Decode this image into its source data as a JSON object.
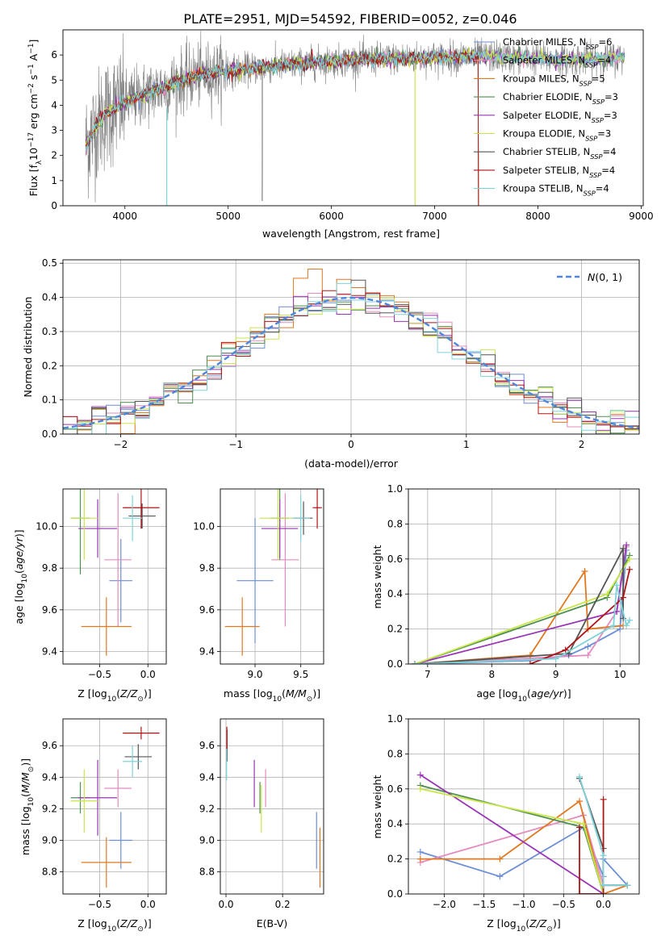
{
  "title": "PLATE=2951, MJD=54592, FIBERID=0052, z=0.046",
  "colors": {
    "Chabrier MILES": "#6c8ed6",
    "Salpeter MILES": "#e58bbf",
    "Kroupa MILES": "#e07820",
    "Chabrier ELODIE": "#4f8f4f",
    "Salpeter ELODIE": "#9a35b5",
    "Kroupa ELODIE": "#c8e64a",
    "Chabrier STELIB": "#555555",
    "Salpeter STELIB": "#b01515",
    "Kroupa STELIB": "#7fd3d8"
  },
  "chart_data": [
    {
      "id": "spectrum",
      "type": "line",
      "title": "PLATE=2951, MJD=54592, FIBERID=0052, z=0.046",
      "xlabel": "wavelength [Angstrom, rest frame]",
      "ylabel": "Flux [f_λ10^-17 erg cm^-2 s^-1 A^-1]",
      "xlim": [
        3400,
        9020
      ],
      "ylim": [
        0,
        7
      ],
      "xticks": [
        4000,
        5000,
        6000,
        7000,
        8000,
        9000
      ],
      "yticks": [
        0,
        1,
        2,
        3,
        4,
        5,
        6
      ],
      "grid": false,
      "legend_position": "top-right",
      "legend": [
        {
          "base": "Chabrier MILES, N",
          "sub": "SSP",
          "tail": "=6"
        },
        {
          "base": "Salpeter MILES, N",
          "sub": "SSP",
          "tail": "=4"
        },
        {
          "base": "Kroupa MILES, N",
          "sub": "SSP",
          "tail": "=5"
        },
        {
          "base": "Chabrier ELODIE, N",
          "sub": "SSP",
          "tail": "=3"
        },
        {
          "base": "Salpeter ELODIE, N",
          "sub": "SSP",
          "tail": "=3"
        },
        {
          "base": "Kroupa ELODIE, N",
          "sub": "SSP",
          "tail": "=3"
        },
        {
          "base": "Chabrier STELIB, N",
          "sub": "SSP",
          "tail": "=4"
        },
        {
          "base": "Salpeter STELIB, N",
          "sub": "SSP",
          "tail": "=4"
        },
        {
          "base": "Kroupa STELIB, N",
          "sub": "SSP",
          "tail": "=4"
        }
      ],
      "data_series": "gray",
      "continuum_points": [
        [
          3620,
          2.4
        ],
        [
          3700,
          3.0
        ],
        [
          3800,
          3.6
        ],
        [
          3900,
          3.9
        ],
        [
          4000,
          4.1
        ],
        [
          4100,
          4.3
        ],
        [
          4300,
          4.6
        ],
        [
          4500,
          4.9
        ],
        [
          4700,
          5.2
        ],
        [
          5000,
          5.35
        ],
        [
          5300,
          5.5
        ],
        [
          5600,
          5.6
        ],
        [
          6000,
          5.75
        ],
        [
          6500,
          5.85
        ],
        [
          7000,
          5.9
        ],
        [
          7400,
          5.95
        ],
        [
          7800,
          5.9
        ],
        [
          8200,
          5.8
        ],
        [
          8600,
          5.85
        ],
        [
          8850,
          5.9
        ]
      ]
    },
    {
      "id": "residuals",
      "type": "histogram",
      "xlabel": "(data-model)/error",
      "ylabel": "Normed distribution",
      "xlim": [
        -2.5,
        2.5
      ],
      "ylim": [
        0,
        0.51
      ],
      "xticks": [
        -2,
        -1,
        0,
        1,
        2
      ],
      "yticks": [
        0.0,
        0.1,
        0.2,
        0.3,
        0.4,
        0.5
      ],
      "grid": true,
      "legend_position": "top-right",
      "normal_curve_label": "N(0,1)",
      "bin_width": 0.125
    },
    {
      "id": "z-vs-age",
      "type": "errorbar",
      "xlabel": "Z [log10(Z/Z⊙)]",
      "ylabel": "age [log10(age/yr)]",
      "xlim": [
        -0.88,
        0.19
      ],
      "ylim": [
        9.34,
        10.18
      ],
      "xticks": [
        -0.5,
        0.0
      ],
      "yticks": [
        9.4,
        9.6,
        9.8,
        10.0
      ],
      "points": [
        {
          "model": "Chabrier MILES",
          "x": -0.28,
          "xerr": 0.12,
          "y": 9.74,
          "yerr": 0.2
        },
        {
          "model": "Salpeter MILES",
          "x": -0.31,
          "xerr": 0.14,
          "y": 9.84,
          "yerr": 0.32
        },
        {
          "model": "Kroupa MILES",
          "x": -0.43,
          "xerr": 0.26,
          "y": 9.52,
          "yerr": 0.14
        },
        {
          "model": "Chabrier ELODIE",
          "x": -0.7,
          "xerr": 0.1,
          "y": 10.04,
          "yerr": 0.27
        },
        {
          "model": "Salpeter ELODIE",
          "x": -0.52,
          "xerr": 0.2,
          "y": 9.99,
          "yerr": 0.14
        },
        {
          "model": "Kroupa ELODIE",
          "x": -0.66,
          "xerr": 0.14,
          "y": 10.04,
          "yerr": 0.2
        },
        {
          "model": "Chabrier STELIB",
          "x": -0.06,
          "xerr": 0.14,
          "y": 10.05,
          "yerr": 0.06
        },
        {
          "model": "Salpeter STELIB",
          "x": -0.07,
          "xerr": 0.19,
          "y": 10.09,
          "yerr": 0.1
        },
        {
          "model": "Kroupa STELIB",
          "x": -0.16,
          "xerr": 0.1,
          "y": 10.04,
          "yerr": 0.11
        }
      ]
    },
    {
      "id": "mass-vs-age",
      "type": "errorbar",
      "xlabel": "mass [log10(M/M⊙)]",
      "ylabel": "",
      "xlim": [
        8.62,
        9.75
      ],
      "ylim": [
        9.34,
        10.18
      ],
      "xticks": [
        9.0,
        9.5
      ],
      "yticks": [
        9.4,
        9.6,
        9.8,
        10.0
      ],
      "points": [
        {
          "model": "Chabrier MILES",
          "x": 9.0,
          "xerr": 0.2,
          "y": 9.74,
          "yerr": 0.3
        },
        {
          "model": "Salpeter MILES",
          "x": 9.33,
          "xerr": 0.15,
          "y": 9.84,
          "yerr": 0.32
        },
        {
          "model": "Kroupa MILES",
          "x": 8.86,
          "xerr": 0.19,
          "y": 9.52,
          "yerr": 0.14
        },
        {
          "model": "Chabrier ELODIE",
          "x": 9.27,
          "xerr": 0.1,
          "y": 10.04,
          "yerr": 0.2
        },
        {
          "model": "Salpeter ELODIE",
          "x": 9.27,
          "xerr": 0.2,
          "y": 9.99,
          "yerr": 0.14
        },
        {
          "model": "Kroupa ELODIE",
          "x": 9.25,
          "xerr": 0.2,
          "y": 10.04,
          "yerr": 0.2
        },
        {
          "model": "Chabrier STELIB",
          "x": 9.53,
          "xerr": 0.1,
          "y": 10.04,
          "yerr": 0.08
        },
        {
          "model": "Salpeter STELIB",
          "x": 9.68,
          "xerr": 0.05,
          "y": 10.09,
          "yerr": 0.1
        },
        {
          "model": "Kroupa STELIB",
          "x": 9.5,
          "xerr": 0.1,
          "y": 10.04,
          "yerr": 0.11
        }
      ]
    },
    {
      "id": "age-vs-mass-weight",
      "type": "line",
      "xlabel": "age [log10(age/yr)]",
      "ylabel": "mass weight",
      "xlim": [
        6.7,
        10.3
      ],
      "ylim": [
        0,
        1.0
      ],
      "xticks": [
        7,
        8,
        9,
        10
      ],
      "yticks": [
        0.0,
        0.2,
        0.4,
        0.6,
        0.8,
        1.0
      ],
      "grid": true,
      "series": [
        {
          "model": "Chabrier MILES",
          "x": [
            6.8,
            8.6,
            9.2,
            9.5,
            10.0,
            10.1
          ],
          "y": [
            0.0,
            0.02,
            0.05,
            0.1,
            0.2,
            0.65
          ]
        },
        {
          "model": "Salpeter MILES",
          "x": [
            6.8,
            9.5,
            9.95,
            10.1
          ],
          "y": [
            0.0,
            0.05,
            0.3,
            0.67
          ]
        },
        {
          "model": "Kroupa MILES",
          "x": [
            6.8,
            8.6,
            9.45,
            9.5,
            10.05
          ],
          "y": [
            0.0,
            0.05,
            0.53,
            0.2,
            0.22
          ]
        },
        {
          "model": "Chabrier ELODIE",
          "x": [
            6.8,
            9.8,
            10.15
          ],
          "y": [
            0.0,
            0.38,
            0.62
          ]
        },
        {
          "model": "Salpeter ELODIE",
          "x": [
            6.8,
            9.95,
            10.1
          ],
          "y": [
            0.0,
            0.3,
            0.68
          ]
        },
        {
          "model": "Kroupa ELODIE",
          "x": [
            6.8,
            9.8,
            10.15
          ],
          "y": [
            0.0,
            0.4,
            0.6
          ]
        },
        {
          "model": "Chabrier STELIB",
          "x": [
            6.8,
            9.2,
            10.05,
            10.05
          ],
          "y": [
            0.0,
            0.06,
            0.66,
            0.26
          ]
        },
        {
          "model": "Salpeter STELIB",
          "x": [
            8.6,
            9.15,
            10.05,
            10.15
          ],
          "y": [
            0.0,
            0.08,
            0.38,
            0.54
          ]
        },
        {
          "model": "Kroupa STELIB",
          "x": [
            6.8,
            9.0,
            9.9,
            9.95,
            10.1,
            10.15
          ],
          "y": [
            0.0,
            0.03,
            0.22,
            0.45,
            0.22,
            0.25
          ]
        }
      ]
    },
    {
      "id": "z-vs-mass",
      "type": "errorbar",
      "xlabel": "Z [log10(Z/Z⊙)]",
      "ylabel": "mass [log10(M/M⊙)]",
      "xlim": [
        -0.88,
        0.19
      ],
      "ylim": [
        8.66,
        9.77
      ],
      "xticks": [
        -0.5,
        0.0
      ],
      "yticks": [
        8.8,
        9.0,
        9.2,
        9.4,
        9.6
      ],
      "points": [
        {
          "model": "Chabrier MILES",
          "x": -0.28,
          "xerr": 0.12,
          "y": 9.0,
          "yerr": 0.18
        },
        {
          "model": "Salpeter MILES",
          "x": -0.31,
          "xerr": 0.14,
          "y": 9.33,
          "yerr": 0.12
        },
        {
          "model": "Kroupa MILES",
          "x": -0.43,
          "xerr": 0.26,
          "y": 8.86,
          "yerr": 0.16
        },
        {
          "model": "Chabrier ELODIE",
          "x": -0.7,
          "xerr": 0.1,
          "y": 9.27,
          "yerr": 0.1
        },
        {
          "model": "Salpeter ELODIE",
          "x": -0.52,
          "xerr": 0.2,
          "y": 9.27,
          "yerr": 0.24
        },
        {
          "model": "Kroupa ELODIE",
          "x": -0.66,
          "xerr": 0.14,
          "y": 9.25,
          "yerr": 0.2
        },
        {
          "model": "Chabrier STELIB",
          "x": -0.1,
          "xerr": 0.14,
          "y": 9.53,
          "yerr": 0.08
        },
        {
          "model": "Salpeter STELIB",
          "x": -0.07,
          "xerr": 0.19,
          "y": 9.68,
          "yerr": 0.04
        },
        {
          "model": "Kroupa STELIB",
          "x": -0.16,
          "xerr": 0.1,
          "y": 9.5,
          "yerr": 0.1
        }
      ]
    },
    {
      "id": "ebv-vs-mass",
      "type": "errorbar",
      "xlabel": "E(B-V)",
      "ylabel": "",
      "xlim": [
        -0.02,
        0.345
      ],
      "ylim": [
        8.66,
        9.77
      ],
      "xticks": [
        0.0,
        0.2
      ],
      "yticks": [
        8.8,
        9.0,
        9.2,
        9.4,
        9.6
      ],
      "points": [
        {
          "model": "Chabrier MILES",
          "x": 0.32,
          "y": 9.0,
          "yerr": 0.18
        },
        {
          "model": "Salpeter MILES",
          "x": 0.14,
          "y": 9.33,
          "yerr": 0.12
        },
        {
          "model": "Kroupa MILES",
          "x": 0.332,
          "y": 8.89,
          "yerr": 0.19
        },
        {
          "model": "Chabrier ELODIE",
          "x": 0.12,
          "y": 9.27,
          "yerr": 0.1
        },
        {
          "model": "Salpeter ELODIE",
          "x": 0.1,
          "y": 9.36,
          "yerr": 0.15
        },
        {
          "model": "Kroupa ELODIE",
          "x": 0.125,
          "y": 9.2,
          "yerr": 0.15
        },
        {
          "model": "Chabrier STELIB",
          "x": 0.004,
          "y": 9.6,
          "yerr": 0.1
        },
        {
          "model": "Salpeter STELIB",
          "x": 0.003,
          "y": 9.65,
          "yerr": 0.07
        },
        {
          "model": "Kroupa STELIB",
          "x": 0.002,
          "y": 9.48,
          "yerr": 0.1
        }
      ]
    },
    {
      "id": "z-vs-mass-weight",
      "type": "line",
      "xlabel": "Z [log10(Z/Z⊙)]",
      "ylabel": "mass weight",
      "xlim": [
        -2.45,
        0.45
      ],
      "ylim": [
        0,
        1.0
      ],
      "xticks": [
        -2.0,
        -1.5,
        -1.0,
        -0.5,
        0.0
      ],
      "yticks": [
        0.0,
        0.2,
        0.4,
        0.6,
        0.8,
        1.0
      ],
      "grid": true,
      "series": [
        {
          "model": "Chabrier MILES",
          "x": [
            -2.3,
            -1.3,
            -0.25,
            0.0,
            0.0,
            0.3
          ],
          "y": [
            0.24,
            0.1,
            0.38,
            0.1,
            0.2,
            0.05
          ]
        },
        {
          "model": "Salpeter MILES",
          "x": [
            -2.3,
            -0.25,
            0.0,
            0.3
          ],
          "y": [
            0.18,
            0.45,
            0.05,
            0.05
          ]
        },
        {
          "model": "Kroupa MILES",
          "x": [
            -2.3,
            -1.3,
            -0.3,
            0.0,
            0.3
          ],
          "y": [
            0.2,
            0.2,
            0.53,
            0.0,
            0.05
          ]
        },
        {
          "model": "Chabrier ELODIE",
          "x": [
            -2.3,
            -0.25,
            0.0,
            0.0
          ],
          "y": [
            0.62,
            0.38,
            0.0,
            0.05
          ]
        },
        {
          "model": "Salpeter ELODIE",
          "x": [
            -2.3,
            0.0,
            0.0
          ],
          "y": [
            0.68,
            0.0,
            0.0
          ]
        },
        {
          "model": "Kroupa ELODIE",
          "x": [
            -2.3,
            -0.25,
            0.0
          ],
          "y": [
            0.6,
            0.4,
            0.0
          ]
        },
        {
          "model": "Chabrier STELIB",
          "x": [
            -0.3,
            0.0,
            0.0,
            0.3
          ],
          "y": [
            0.66,
            0.26,
            0.05,
            0.05
          ]
        },
        {
          "model": "Salpeter STELIB",
          "x": [
            -0.3,
            -0.3,
            0.0,
            0.0
          ],
          "y": [
            0.38,
            0.0,
            0.0,
            0.54
          ]
        },
        {
          "model": "Kroupa STELIB",
          "x": [
            -0.3,
            0.0,
            0.0,
            0.3
          ],
          "y": [
            0.67,
            0.22,
            0.05,
            0.05
          ]
        }
      ]
    }
  ]
}
